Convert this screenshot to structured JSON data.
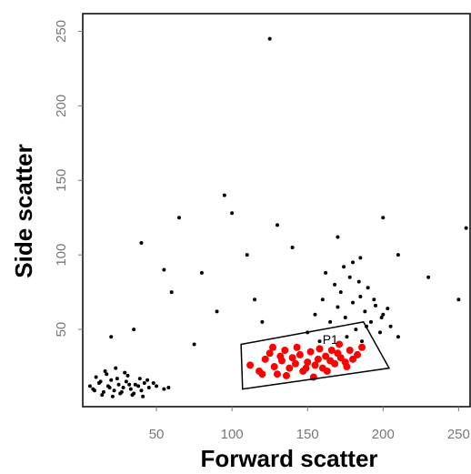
{
  "chart_data": {
    "type": "scatter",
    "xlabel": "Forward scatter",
    "ylabel": "Side scatter",
    "xlim": [
      0,
      257
    ],
    "ylim": [
      0,
      260
    ],
    "xticks": [
      50,
      100,
      150,
      200,
      250
    ],
    "yticks": [
      50,
      100,
      150,
      200,
      250
    ],
    "series": [
      {
        "color": "#000000",
        "x": [
          8,
          12,
          15,
          18,
          20,
          22,
          25,
          28,
          30,
          33,
          35,
          38,
          40,
          42,
          45,
          10,
          14,
          17,
          21,
          24,
          27,
          31,
          36,
          44,
          50,
          55,
          6,
          9,
          13,
          19,
          26,
          32,
          39,
          48,
          58,
          16,
          23,
          29,
          34,
          41
        ],
        "values": [
          10,
          14,
          8,
          12,
          16,
          9,
          13,
          11,
          15,
          10,
          7,
          12,
          9,
          14,
          11,
          18,
          6,
          20,
          5,
          17,
          8,
          19,
          13,
          16,
          12,
          10,
          12,
          9,
          15,
          11,
          7,
          13,
          17,
          14,
          11,
          22,
          24,
          21,
          6,
          5
        ]
      },
      {
        "color": "#ff0000",
        "x": [
          112,
          118,
          122,
          125,
          128,
          130,
          133,
          135,
          138,
          140,
          142,
          145,
          147,
          150,
          152,
          155,
          157,
          160,
          162,
          165,
          168,
          170,
          172,
          175,
          178,
          180,
          183,
          186,
          120,
          127,
          136,
          143,
          149,
          158,
          163,
          171,
          176,
          132,
          154,
          166
        ],
        "values": [
          26,
          22,
          30,
          34,
          25,
          20,
          29,
          36,
          24,
          31,
          27,
          33,
          22,
          28,
          35,
          26,
          30,
          24,
          32,
          29,
          27,
          34,
          31,
          28,
          36,
          30,
          33,
          38,
          20,
          38,
          19,
          38,
          24,
          37,
          22,
          40,
          25,
          32,
          18,
          36
        ]
      },
      {
        "color": "#000000",
        "x": [
          150,
          155,
          160,
          165,
          168,
          170,
          172,
          175,
          178,
          180,
          182,
          185,
          188,
          190,
          192,
          195,
          198,
          200,
          205,
          210,
          162,
          174,
          184,
          194,
          203,
          158,
          176,
          189,
          199,
          186
        ],
        "values": [
          48,
          60,
          70,
          55,
          80,
          65,
          75,
          58,
          85,
          68,
          50,
          72,
          62,
          78,
          55,
          66,
          48,
          60,
          52,
          45,
          88,
          92,
          82,
          70,
          64,
          42,
          45,
          52,
          58,
          42
        ]
      },
      {
        "color": "#000000",
        "x": [
          125,
          95,
          65,
          40,
          55,
          110,
          130,
          180,
          200,
          255,
          140,
          80,
          115,
          60,
          35,
          100,
          210,
          230,
          170,
          90,
          75,
          120,
          185,
          250,
          20
        ],
        "values": [
          245,
          140,
          125,
          108,
          90,
          100,
          120,
          95,
          125,
          118,
          105,
          88,
          70,
          75,
          50,
          128,
          100,
          85,
          112,
          62,
          40,
          55,
          98,
          70,
          45
        ]
      }
    ],
    "gate": {
      "label": "P1",
      "x": [
        106,
        187,
        204,
        107
      ],
      "y": [
        40,
        55,
        24,
        10
      ]
    }
  }
}
